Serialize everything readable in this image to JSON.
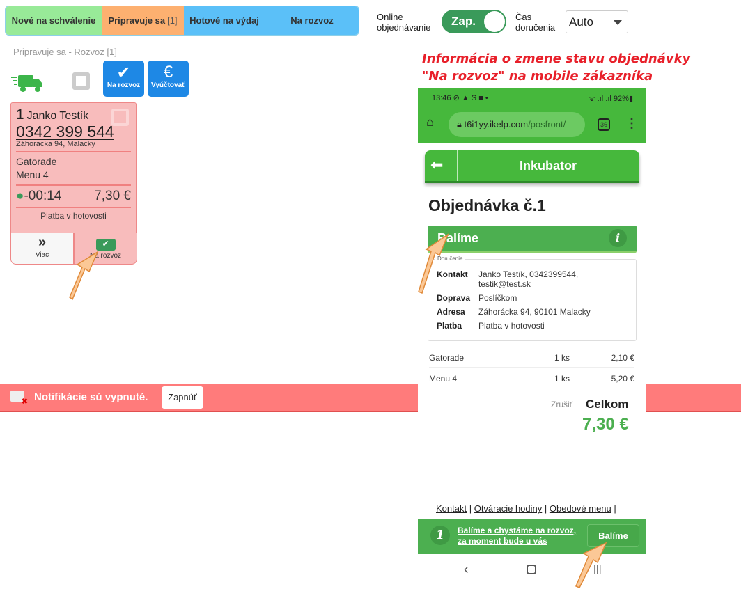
{
  "tabs": [
    {
      "label": "Nové na schválenie"
    },
    {
      "label": "Pripravuje sa",
      "count": "[1]"
    },
    {
      "label": "Hotové na výdaj"
    },
    {
      "label": "Na rozvoz"
    }
  ],
  "online": {
    "label1": "Online",
    "label2": "objednávanie",
    "toggle": "Zap.",
    "state": "on"
  },
  "delivery": {
    "label1": "Čas",
    "label2": "doručenia",
    "value": "Auto"
  },
  "annotation": {
    "line1": "Informácia o zmene stavu objednávky",
    "line2": "\"Na rozvoz\" na mobile zákazníka"
  },
  "section_title": "Pripravuje sa - Rozvoz [1]",
  "actions": [
    {
      "label": "Na rozvoz",
      "icon": "tag-check-icon"
    },
    {
      "label": "Vyúčtovať",
      "icon": "euro-icon"
    }
  ],
  "order": {
    "number": "1",
    "name": "Janko Testík",
    "phone": "0342 399 544",
    "address": "Záhorácka 94, Malacky",
    "items": [
      "Gatorade",
      "Menu 4"
    ],
    "time": "-00:14",
    "total": "7,30 €",
    "payment": "Platba v hotovosti",
    "more_label": "Viac",
    "deliver_label": "Na rozvoz"
  },
  "notifications": {
    "text": "Notifikácie sú vypnuté.",
    "button": "Zapnúť"
  },
  "mobile": {
    "status_time": "13:46",
    "battery": "92%",
    "url_host": "t6i1yy.ikelp.com",
    "url_path": "/posfront/",
    "tabs_count": "36",
    "shop": "Inkubator",
    "order_title": "Objednávka č.1",
    "status": "Balíme",
    "fieldset": "Doručenie",
    "details": [
      {
        "k": "Kontakt",
        "v": "Janko Testík, 0342399544,",
        "v2": "testik@test.sk"
      },
      {
        "k": "Doprava",
        "v": "Poslíčkom"
      },
      {
        "k": "Adresa",
        "v": "Záhorácka 94, 90101 Malacky"
      },
      {
        "k": "Platba",
        "v": "Platba v hotovosti"
      }
    ],
    "items": [
      {
        "name": "Gatorade",
        "qty": "1 ks",
        "price": "2,10 €"
      },
      {
        "name": "Menu 4",
        "qty": "1 ks",
        "price": "5,20 €"
      }
    ],
    "cancel": "Zrušiť",
    "total_label": "Celkom",
    "total": "7,30 €",
    "footer_links": [
      "Kontakt",
      "Otváracie hodiny",
      "Obedové menu"
    ],
    "bottom_num": "1",
    "bottom_line1": "Balíme a chystáme na rozvoz,",
    "bottom_line2": "za moment bude u vás",
    "bottom_btn": "Balíme"
  },
  "colors": {
    "green": "#4caf50",
    "red_note": "#e8202a",
    "blue": "#1e88e5"
  }
}
